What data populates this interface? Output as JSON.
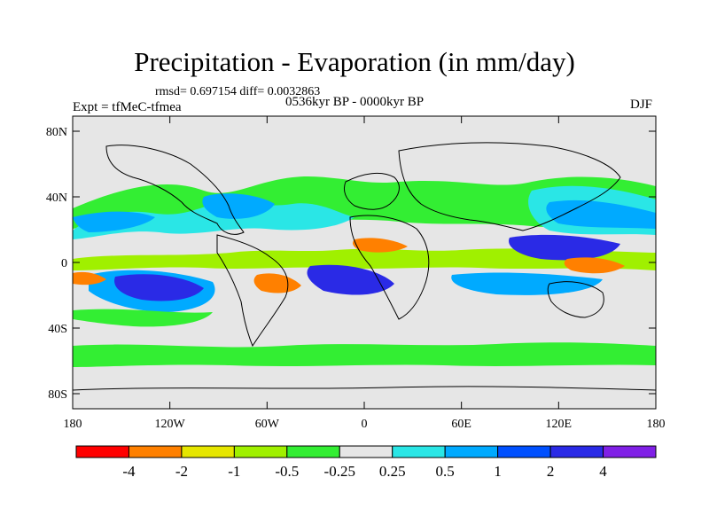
{
  "title": "Precipitation - Evaporation (in mm/day)",
  "stats": "rmsd= 0.697154  diff= 0.0032863",
  "experiment": "Expt = tfMeC-tfmea",
  "period": "0536kyr BP - 0000kyr BP",
  "season": "DJF",
  "axes": {
    "y_ticks": [
      "80N",
      "40N",
      "0",
      "40S",
      "80S"
    ],
    "x_ticks": [
      "180",
      "120W",
      "60W",
      "0",
      "60E",
      "120E",
      "180"
    ]
  },
  "colorbar": {
    "colors": [
      "#ff0000",
      "#ff8000",
      "#e6e600",
      "#a0f000",
      "#33ee33",
      "#e6e6e6",
      "#2ae6e6",
      "#00aaff",
      "#0050ff",
      "#2a2ae6",
      "#8020e6"
    ],
    "labels": [
      "-4",
      "-2",
      "-1",
      "-0.5",
      "-0.25",
      "0.25",
      "0.5",
      "1",
      "2",
      "4"
    ]
  }
}
